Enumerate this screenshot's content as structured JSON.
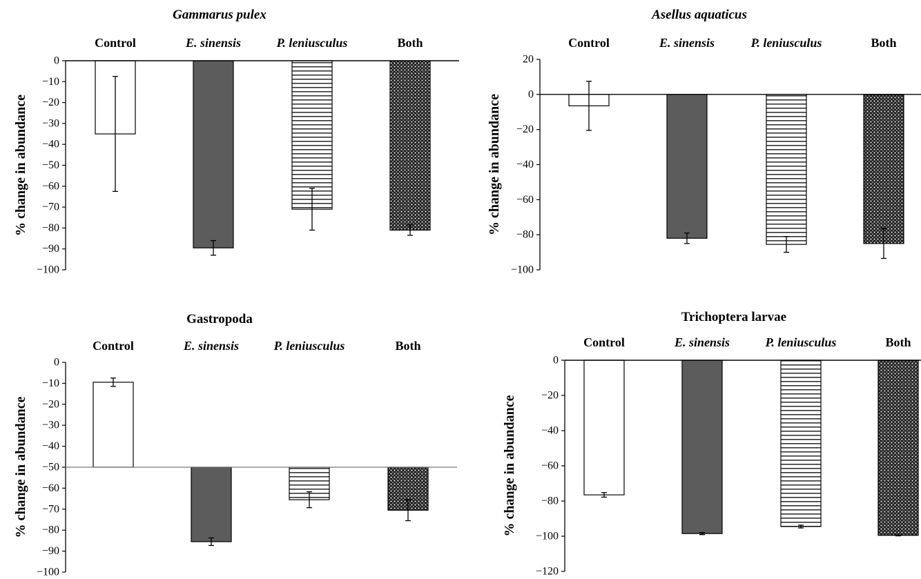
{
  "chart_data": [
    {
      "type": "bar",
      "title": "Gammarus pulex",
      "title_italic": true,
      "categories": [
        "Control",
        "E. sinensis",
        "P. leniusculus",
        "Both"
      ],
      "category_italic": [
        false,
        true,
        true,
        false
      ],
      "ylabel": "% change in abundance",
      "ylim": [
        -100,
        0
      ],
      "yticks": [
        0,
        -10,
        -20,
        -30,
        -40,
        -50,
        -60,
        -70,
        -80,
        -90,
        -100
      ],
      "baseline": 0,
      "values": [
        -35,
        -89.5,
        -71,
        -81
      ],
      "errors": [
        27.5,
        3.5,
        10,
        2.5
      ],
      "fills": [
        "white",
        "solid-gray",
        "horizontal-lines",
        "dots"
      ]
    },
    {
      "type": "bar",
      "title": "Asellus aquaticus",
      "title_italic": true,
      "categories": [
        "Control",
        "E. sinensis",
        "P. leniusculus",
        "Both"
      ],
      "category_italic": [
        false,
        true,
        true,
        false
      ],
      "ylabel": "% change in abundance",
      "ylim": [
        -100,
        20
      ],
      "yticks": [
        20,
        0,
        -20,
        -40,
        -60,
        -80,
        -100
      ],
      "baseline": 0,
      "values": [
        -6.5,
        -82,
        -85.5,
        -85
      ],
      "errors": [
        14,
        3,
        4.5,
        8.5
      ],
      "fills": [
        "white",
        "solid-gray",
        "horizontal-lines",
        "dots"
      ]
    },
    {
      "type": "bar",
      "title": "Gastropoda",
      "title_italic": false,
      "categories": [
        "Control",
        "E. sinensis",
        "P. leniusculus",
        "Both"
      ],
      "category_italic": [
        false,
        true,
        true,
        false
      ],
      "ylabel": "% change in abundance",
      "ylim": [
        -100,
        0
      ],
      "yticks": [
        0,
        -10,
        -20,
        -30,
        -40,
        -50,
        -60,
        -70,
        -80,
        -90,
        -100
      ],
      "baseline": -50,
      "values": [
        -9.5,
        -85.5,
        -65.5,
        -70.5
      ],
      "errors": [
        2,
        1.8,
        3.8,
        5
      ],
      "fills": [
        "white",
        "solid-gray",
        "horizontal-lines",
        "dots"
      ]
    },
    {
      "type": "bar",
      "title": "Trichoptera larvae",
      "title_italic": false,
      "categories": [
        "Control",
        "E. sinensis",
        "P. leniusculus",
        "Both"
      ],
      "category_italic": [
        false,
        true,
        true,
        false
      ],
      "ylabel": "% change in abundance",
      "ylim": [
        -120,
        0
      ],
      "yticks": [
        0,
        -20,
        -40,
        -60,
        -80,
        -100,
        -120
      ],
      "baseline": 0,
      "values": [
        -76.5,
        -98.5,
        -94.5,
        -99.5
      ],
      "errors": [
        1.3,
        0.6,
        0.8,
        0.3
      ],
      "fills": [
        "white",
        "solid-gray",
        "horizontal-lines",
        "dots"
      ]
    }
  ]
}
